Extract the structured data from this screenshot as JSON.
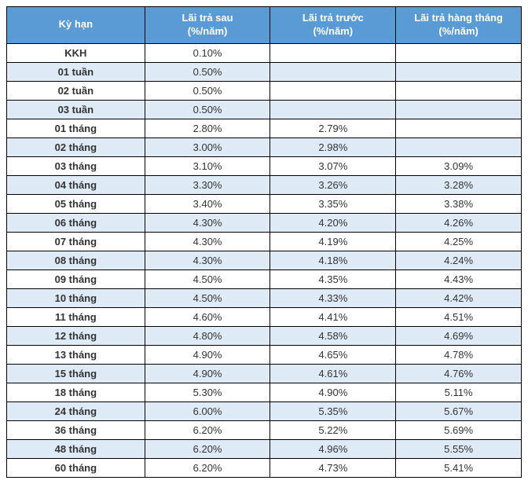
{
  "table": {
    "columns": [
      {
        "line1": "Kỳ hạn",
        "line2": ""
      },
      {
        "line1": "Lãi trả sau",
        "line2": "(%/năm)"
      },
      {
        "line1": "Lãi trả trước",
        "line2": "(%/năm)"
      },
      {
        "line1": "Lãi trả hàng tháng",
        "line2": "(%/năm)"
      }
    ],
    "header_bg": "#5b9bd5",
    "header_text_color": "#ffffff",
    "row_alt_bg": "#deeaf6",
    "row_bg": "#ffffff",
    "border_color": "#000000",
    "rows": [
      {
        "term": "KKH",
        "after": "0.10%",
        "before": "",
        "monthly": ""
      },
      {
        "term": "01 tuần",
        "after": "0.50%",
        "before": "",
        "monthly": ""
      },
      {
        "term": "02 tuần",
        "after": "0.50%",
        "before": "",
        "monthly": ""
      },
      {
        "term": "03 tuần",
        "after": "0.50%",
        "before": "",
        "monthly": ""
      },
      {
        "term": "01 tháng",
        "after": "2.80%",
        "before": "2.79%",
        "monthly": ""
      },
      {
        "term": "02 tháng",
        "after": "3.00%",
        "before": "2.98%",
        "monthly": ""
      },
      {
        "term": "03 tháng",
        "after": "3.10%",
        "before": "3.07%",
        "monthly": "3.09%"
      },
      {
        "term": "04 tháng",
        "after": "3.30%",
        "before": "3.26%",
        "monthly": "3.28%"
      },
      {
        "term": "05 tháng",
        "after": "3.40%",
        "before": "3.35%",
        "monthly": "3.38%"
      },
      {
        "term": "06 tháng",
        "after": "4.30%",
        "before": "4.20%",
        "monthly": "4.26%"
      },
      {
        "term": "07 tháng",
        "after": "4.30%",
        "before": "4.19%",
        "monthly": "4.25%"
      },
      {
        "term": "08 tháng",
        "after": "4.30%",
        "before": "4.18%",
        "monthly": "4.24%"
      },
      {
        "term": "09 tháng",
        "after": "4.50%",
        "before": "4.35%",
        "monthly": "4.43%"
      },
      {
        "term": "10 tháng",
        "after": "4.50%",
        "before": "4.33%",
        "monthly": "4.42%"
      },
      {
        "term": "11 tháng",
        "after": "4.60%",
        "before": "4.41%",
        "monthly": "4.51%"
      },
      {
        "term": "12 tháng",
        "after": "4.80%",
        "before": "4.58%",
        "monthly": "4.69%"
      },
      {
        "term": "13 tháng",
        "after": "4.90%",
        "before": "4.65%",
        "monthly": "4.78%"
      },
      {
        "term": "15 tháng",
        "after": "4.90%",
        "before": "4.61%",
        "monthly": "4.76%"
      },
      {
        "term": "18 tháng",
        "after": "5.30%",
        "before": "4.90%",
        "monthly": "5.11%"
      },
      {
        "term": "24 tháng",
        "after": "6.00%",
        "before": "5.35%",
        "monthly": "5.67%"
      },
      {
        "term": "36 tháng",
        "after": "6.20%",
        "before": "5.22%",
        "monthly": "5.69%"
      },
      {
        "term": "48 tháng",
        "after": "6.20%",
        "before": "4.96%",
        "monthly": "5.55%"
      },
      {
        "term": "60 tháng",
        "after": "6.20%",
        "before": "4.73%",
        "monthly": "5.41%"
      }
    ]
  }
}
